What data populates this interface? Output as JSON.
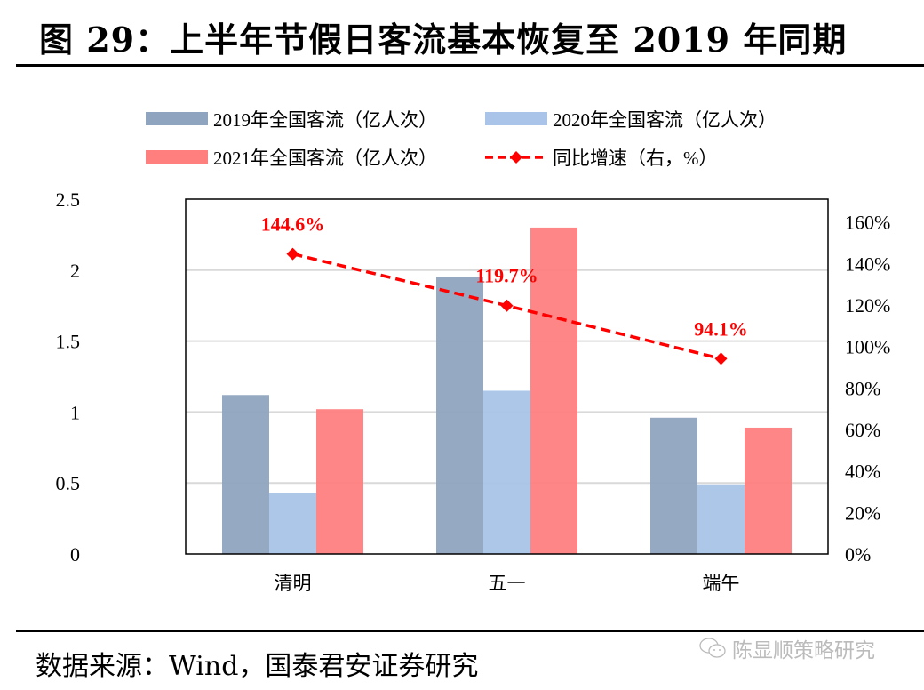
{
  "header": {
    "title": "图 29：上半年节假日客流基本恢复至 2019 年同期"
  },
  "footer": {
    "source": "数据来源：Wind，国泰君安证券研究",
    "watermark": "陈显顺策略研究",
    "watermark_icon": "wechat-icon"
  },
  "colors": {
    "s2019": "#8fa5bf",
    "s2020": "#a9c4e8",
    "s2021": "#ff7f7f",
    "line": "#ff0000",
    "grid": "#d9d9d9"
  },
  "chart_data": {
    "type": "bar",
    "title": "上半年节假日客流基本恢复至 2019 年同期",
    "categories": [
      "清明",
      "五一",
      "端午"
    ],
    "series": [
      {
        "name": "2019年全国客流（亿人次）",
        "type": "bar",
        "axis": "left",
        "values": [
          1.12,
          1.95,
          0.96
        ]
      },
      {
        "name": "2020年全国客流（亿人次）",
        "type": "bar",
        "axis": "left",
        "values": [
          0.43,
          1.15,
          0.49
        ]
      },
      {
        "name": "2021年全国客流（亿人次）",
        "type": "bar",
        "axis": "left",
        "values": [
          1.02,
          2.3,
          0.89
        ]
      },
      {
        "name": "同比增速（右，%）",
        "type": "line",
        "axis": "right",
        "values": [
          144.6,
          119.7,
          94.1
        ],
        "labels": [
          "144.6%",
          "119.7%",
          "94.1%"
        ]
      }
    ],
    "y_left": {
      "ylim": [
        0,
        2.5
      ],
      "ticks": [
        "0",
        "0.5",
        "1",
        "1.5",
        "2",
        "2.5"
      ],
      "tick_values": [
        0,
        0.5,
        1,
        1.5,
        2,
        2.5
      ]
    },
    "y_right": {
      "ylim": [
        0,
        171
      ],
      "ticks": [
        "0%",
        "20%",
        "40%",
        "60%",
        "80%",
        "100%",
        "120%",
        "140%",
        "160%"
      ],
      "tick_values": [
        0,
        20,
        40,
        60,
        80,
        100,
        120,
        140,
        160
      ]
    },
    "grid": true,
    "legend_position": "top"
  }
}
